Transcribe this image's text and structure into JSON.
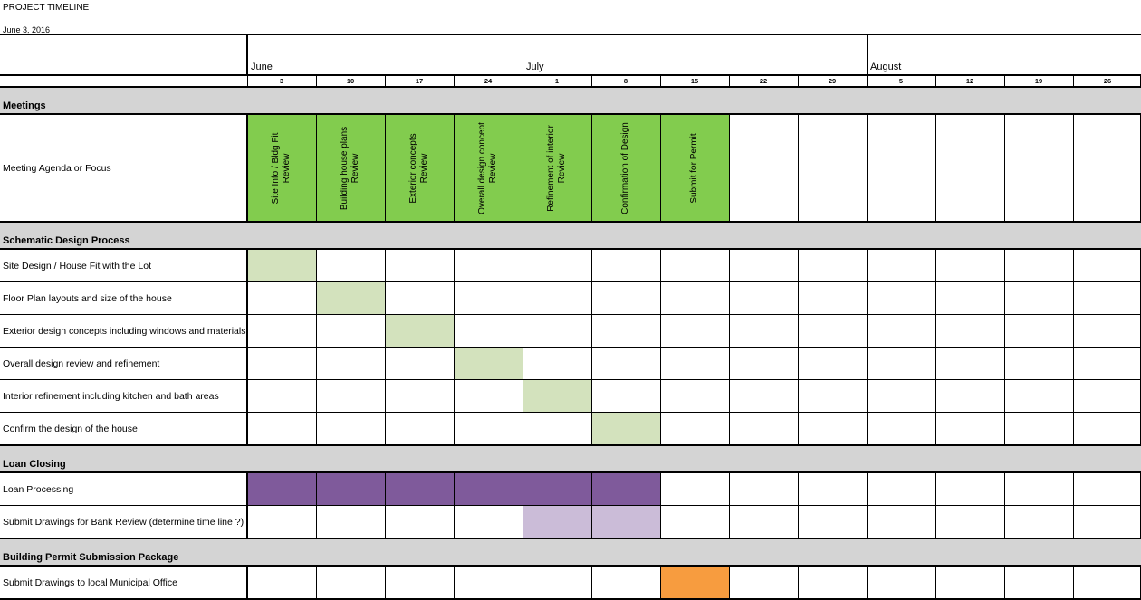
{
  "title": "PROJECT TIMELINE",
  "date": "June 3, 2016",
  "colors": {
    "meeting": "#82cc4e",
    "schematic": "#d3e2bd",
    "loan_processing": "#7f5a9b",
    "bank_review": "#cbbcd8",
    "permit": "#f79c3f",
    "section_band": "#d4d4d4"
  },
  "months": [
    {
      "label": "June",
      "start_week": 0,
      "span": 4
    },
    {
      "label": "July",
      "start_week": 4,
      "span": 5
    },
    {
      "label": "August",
      "start_week": 9,
      "span": 4
    }
  ],
  "weeks": [
    "3",
    "10",
    "17",
    "24",
    "1",
    "8",
    "15",
    "22",
    "29",
    "5",
    "12",
    "19",
    "26"
  ],
  "sections": [
    {
      "name": "Meetings",
      "rows": [
        {
          "label": "Meeting Agenda or Focus",
          "type": "meeting",
          "items": [
            {
              "week": 0,
              "text": "Site Info / Bldg Fit\nReview"
            },
            {
              "week": 1,
              "text": "Building house plans\nReview"
            },
            {
              "week": 2,
              "text": "Exterior concepts\nReview"
            },
            {
              "week": 3,
              "text": "Overall design concept\nReview"
            },
            {
              "week": 4,
              "text": "Refinement of interior\nReview"
            },
            {
              "week": 5,
              "text": "Confirmation of Design"
            },
            {
              "week": 6,
              "text": "Submit for Permit"
            }
          ]
        }
      ]
    },
    {
      "name": "Schematic Design Process",
      "rows": [
        {
          "label": "Site Design / House Fit with the Lot",
          "fill": [
            0
          ],
          "color": "schematic"
        },
        {
          "label": "Floor Plan layouts and size of the house",
          "fill": [
            1
          ],
          "color": "schematic"
        },
        {
          "label": "Exterior design concepts including windows and materials",
          "fill": [
            2
          ],
          "color": "schematic"
        },
        {
          "label": "Overall design review and refinement",
          "fill": [
            3
          ],
          "color": "schematic"
        },
        {
          "label": "Interior refinement including kitchen and bath areas",
          "fill": [
            4
          ],
          "color": "schematic"
        },
        {
          "label": "Confirm the design of the house",
          "fill": [
            5
          ],
          "color": "schematic"
        }
      ]
    },
    {
      "name": "Loan Closing",
      "rows": [
        {
          "label": "Loan Processing",
          "fill": [
            0,
            1,
            2,
            3,
            4,
            5
          ],
          "color": "loan_processing"
        },
        {
          "label": "Submit Drawings for Bank Review (determine time line ?)",
          "fill": [
            4,
            5
          ],
          "color": "bank_review"
        }
      ]
    },
    {
      "name": "Building Permit Submission Package",
      "rows": [
        {
          "label": "Submit Drawings to local  Municipal Office",
          "fill": [
            6
          ],
          "color": "permit"
        }
      ]
    }
  ]
}
